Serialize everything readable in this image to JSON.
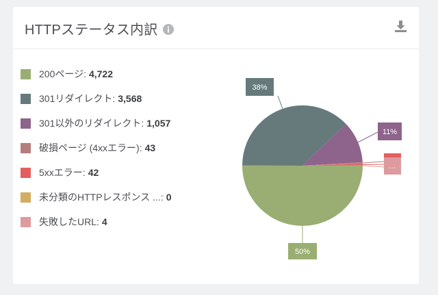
{
  "card": {
    "title": "HTTPステータス内訳",
    "info_icon": "info-circle-icon",
    "download_icon": "download-icon"
  },
  "legend": [
    {
      "label": "200ページ:",
      "value": "4,722",
      "color": "#9aae73"
    },
    {
      "label": "301リダイレクト:",
      "value": "3,568",
      "color": "#667a7c"
    },
    {
      "label": "301以外のリダイレクト:",
      "value": "1,057",
      "color": "#8e638c"
    },
    {
      "label": "破損ページ (4xxエラー):",
      "value": "43",
      "color": "#b57e7e"
    },
    {
      "label": "5xxエラー:",
      "value": "42",
      "color": "#e35f5f"
    },
    {
      "label": "未分類のHTTPレスポンス ...:",
      "value": "0",
      "color": "#d4ad63"
    },
    {
      "label": "失敗したURL:",
      "value": "4",
      "color": "#dd9b9e"
    }
  ],
  "chart_data": {
    "type": "pie",
    "categories": [
      "200ページ",
      "301リダイレクト",
      "301以外のリダイレクト",
      "破損ページ (4xxエラー)",
      "5xxエラー",
      "未分類のHTTPレスポンス ...",
      "失敗したURL"
    ],
    "values": [
      4722,
      3568,
      1057,
      43,
      42,
      0,
      4
    ],
    "colors": [
      "#9aae73",
      "#667a7c",
      "#8e638c",
      "#b57e7e",
      "#e35f5f",
      "#d4ad63",
      "#dd9b9e"
    ],
    "data_labels": [
      "50%",
      "38%",
      "11%",
      "",
      "…",
      "",
      ""
    ]
  }
}
